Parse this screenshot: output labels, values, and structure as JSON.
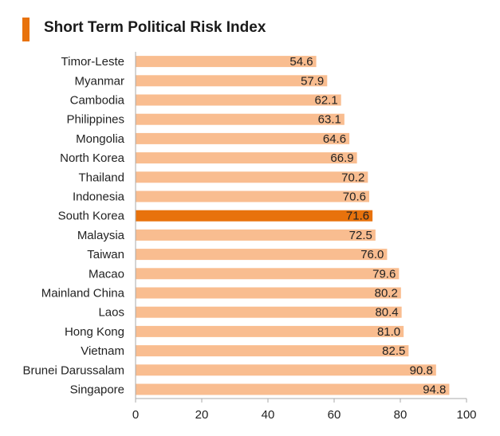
{
  "chart_data": {
    "type": "bar",
    "orientation": "horizontal",
    "title": "Short Term Political Risk Index",
    "categories": [
      "Timor-Leste",
      "Myanmar",
      "Cambodia",
      "Philippines",
      "Mongolia",
      "North Korea",
      "Thailand",
      "Indonesia",
      "South Korea",
      "Malaysia",
      "Taiwan",
      "Macao",
      "Mainland China",
      "Laos",
      "Hong Kong",
      "Vietnam",
      "Brunei Darussalam",
      "Singapore"
    ],
    "values": [
      54.6,
      57.9,
      62.1,
      63.1,
      64.6,
      66.9,
      70.2,
      70.6,
      71.6,
      72.5,
      76.0,
      79.6,
      80.2,
      80.4,
      81.0,
      82.5,
      90.8,
      94.8
    ],
    "value_labels": [
      "54.6",
      "57.9",
      "62.1",
      "63.1",
      "64.6",
      "66.9",
      "70.2",
      "70.6",
      "71.6",
      "72.5",
      "76.0",
      "79.6",
      "80.2",
      "80.4",
      "81.0",
      "82.5",
      "90.8",
      "94.8"
    ],
    "highlight": "South Korea",
    "xlim": [
      0,
      100
    ],
    "xticks": [
      0,
      20,
      40,
      60,
      80,
      100
    ],
    "xlabel": "",
    "ylabel": "",
    "grid": false,
    "colors": {
      "bar": "#f9bd90",
      "highlight": "#e8720c",
      "title_accent": "#e8720c",
      "axis": "#aaaaaa"
    }
  }
}
